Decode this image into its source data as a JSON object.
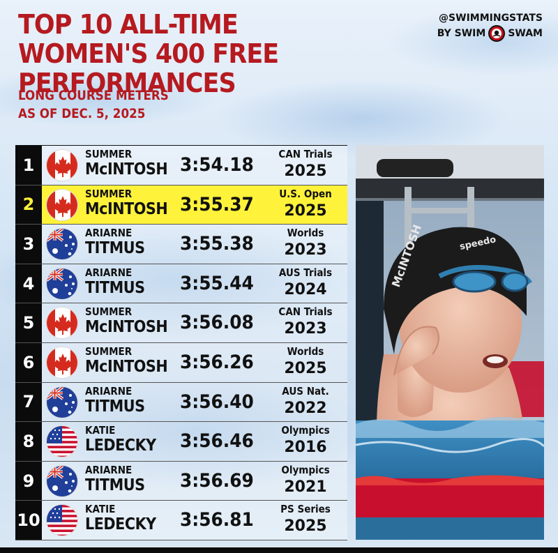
{
  "title_lines": [
    "TOP 10 ALL-TIME",
    "WOMEN'S 400 FREE PERFORMANCES"
  ],
  "subtitle_lines": [
    "LONG COURSE METERS",
    "AS OF DEC. 5, 2025"
  ],
  "brand": {
    "handle": "@SWIMMINGSTATS",
    "by": "BY SWIM",
    "name": "SWAM",
    "logo_icon": "swimswam-logo-icon"
  },
  "colors": {
    "title_red": "#b51a1f",
    "highlight_yellow": "#fff23a",
    "rank_black": "#0b0b0b"
  },
  "rows": [
    {
      "rank": "1",
      "flag": "canada-flag-icon",
      "first": "SUMMER",
      "last": "McINTOSH",
      "time": "3:54.18",
      "meet": "CAN Trials",
      "year": "2025",
      "highlight": false
    },
    {
      "rank": "2",
      "flag": "canada-flag-icon",
      "first": "SUMMER",
      "last": "McINTOSH",
      "time": "3:55.37",
      "meet": "U.S. Open",
      "year": "2025",
      "highlight": true
    },
    {
      "rank": "3",
      "flag": "australia-flag-icon",
      "first": "ARIARNE",
      "last": "TITMUS",
      "time": "3:55.38",
      "meet": "Worlds",
      "year": "2023",
      "highlight": false
    },
    {
      "rank": "4",
      "flag": "australia-flag-icon",
      "first": "ARIARNE",
      "last": "TITMUS",
      "time": "3:55.44",
      "meet": "AUS Trials",
      "year": "2024",
      "highlight": false
    },
    {
      "rank": "5",
      "flag": "canada-flag-icon",
      "first": "SUMMER",
      "last": "McINTOSH",
      "time": "3:56.08",
      "meet": "CAN Trials",
      "year": "2023",
      "highlight": false
    },
    {
      "rank": "6",
      "flag": "canada-flag-icon",
      "first": "SUMMER",
      "last": "McINTOSH",
      "time": "3:56.26",
      "meet": "Worlds",
      "year": "2025",
      "highlight": false
    },
    {
      "rank": "7",
      "flag": "australia-flag-icon",
      "first": "ARIARNE",
      "last": "TITMUS",
      "time": "3:56.40",
      "meet": "AUS Nat.",
      "year": "2022",
      "highlight": false
    },
    {
      "rank": "8",
      "flag": "usa-flag-icon",
      "first": "KATIE",
      "last": "LEDECKY",
      "time": "3:56.46",
      "meet": "Olympics",
      "year": "2016",
      "highlight": false
    },
    {
      "rank": "9",
      "flag": "australia-flag-icon",
      "first": "ARIARNE",
      "last": "TITMUS",
      "time": "3:56.69",
      "meet": "Olympics",
      "year": "2021",
      "highlight": false
    },
    {
      "rank": "10",
      "flag": "usa-flag-icon",
      "first": "KATIE",
      "last": "LEDECKY",
      "time": "3:56.81",
      "meet": "PS Series",
      "year": "2025",
      "highlight": false
    }
  ],
  "photo": {
    "icon": "swimmer-photo-icon",
    "cap_text": "McINTOSH",
    "cap_brand": "speedo"
  }
}
